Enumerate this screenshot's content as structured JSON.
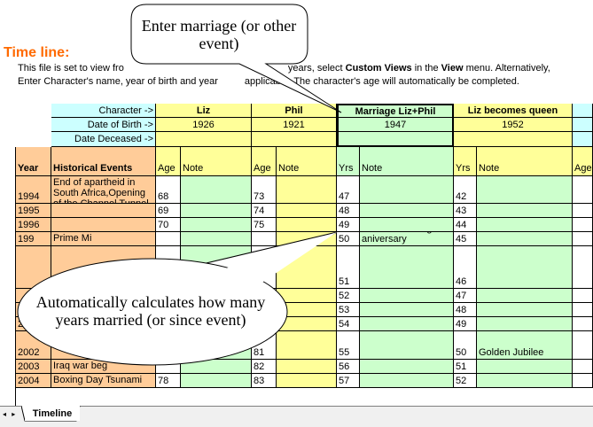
{
  "title": "Time line:",
  "description": {
    "line1_start": "This file is set to view fro",
    "line1_end_pre": "years, select ",
    "custom_views": "Custom Views",
    "in_the": " in the ",
    "view": "View",
    "line1_end_post": " menu. Alternatively,",
    "line2_start": "Enter Character's name, year of birth and year",
    "line2_end": "applicable. The character's age will automatically be completed."
  },
  "labels": {
    "character": "Character ->",
    "dob": "Date of Birth ->",
    "deceased": "Date Deceased ->"
  },
  "characters": [
    {
      "name": "Liz",
      "dob": "1926"
    },
    {
      "name": "Phil",
      "dob": "1921"
    },
    {
      "name": "Marriage Liz+Phil",
      "dob": "1947"
    },
    {
      "name": "Liz  becomes queen",
      "dob": "1952"
    }
  ],
  "headers": {
    "year": "Year",
    "events": "Historical Events",
    "age1": "Age",
    "note1": "Note",
    "age2": "Age",
    "note2": "Note",
    "yrs3": "Yrs",
    "note3": "Note",
    "yrs4": "Yrs",
    "note4": "Note",
    "age5": "Age"
  },
  "rows": [
    {
      "year": "1994",
      "event": "End of apartheid in South Africa,Opening of the Channel Tunnel",
      "a1": "68",
      "n1": "",
      "a2": "73",
      "n2": "",
      "a3": "47",
      "n3": "",
      "a4": "42",
      "n4": ""
    },
    {
      "year": "1995",
      "event": "",
      "a1": "69",
      "n1": "",
      "a2": "74",
      "n2": "",
      "a3": "48",
      "n3": "",
      "a4": "43",
      "n4": ""
    },
    {
      "year": "1996",
      "event": "",
      "a1": "70",
      "n1": "",
      "a2": "75",
      "n2": "",
      "a3": "49",
      "n3": "",
      "a4": "44",
      "n4": ""
    },
    {
      "year": "199",
      "event": "Prime Mi",
      "a1": "",
      "n1": "",
      "a2": "",
      "n2": "",
      "a3": "50",
      "n3": "Golden wedding aniversary",
      "a4": "45",
      "n4": ""
    },
    {
      "year": "",
      "event": "",
      "a1": "",
      "n1": "",
      "a2": "",
      "n2": "",
      "a3": "51",
      "n3": "",
      "a4": "46",
      "n4": ""
    },
    {
      "year": "",
      "event": "",
      "a1": "",
      "n1": "",
      "a2": "",
      "n2": "",
      "a3": "52",
      "n3": "",
      "a4": "47",
      "n4": ""
    },
    {
      "year": "",
      "event": "",
      "a1": "",
      "n1": "",
      "a2": "",
      "n2": "",
      "a3": "53",
      "n3": "",
      "a4": "48",
      "n4": ""
    },
    {
      "year": "200",
      "event": "",
      "a1": "",
      "n1": "",
      "a2": "",
      "n2": "",
      "a3": "54",
      "n3": "",
      "a4": "49",
      "n4": ""
    },
    {
      "year": "2002",
      "event": "",
      "a1": "",
      "n1": "",
      "a2": "81",
      "n2": "",
      "a3": "55",
      "n3": "",
      "a4": "50",
      "n4": "Golden Jubilee"
    },
    {
      "year": "2003",
      "event": "Iraq war beg",
      "a1": "",
      "n1": "",
      "a2": "82",
      "n2": "",
      "a3": "56",
      "n3": "",
      "a4": "51",
      "n4": ""
    },
    {
      "year": "2004",
      "event": "Boxing Day Tsunami",
      "a1": "78",
      "n1": "",
      "a2": "83",
      "n2": "",
      "a3": "57",
      "n3": "",
      "a4": "52",
      "n4": ""
    }
  ],
  "callouts": {
    "top": "Enter marriage (or other event)",
    "bottom": "Automatically calculates how many years married (or since event)"
  },
  "sheet_tab": "Timeline",
  "tab_nav": "◂ ▸",
  "colors": {
    "title": "#ff6a00",
    "cyan": "#ccffff",
    "yellow": "#ffff99",
    "green": "#ccffcc",
    "peach": "#ffcc99"
  }
}
